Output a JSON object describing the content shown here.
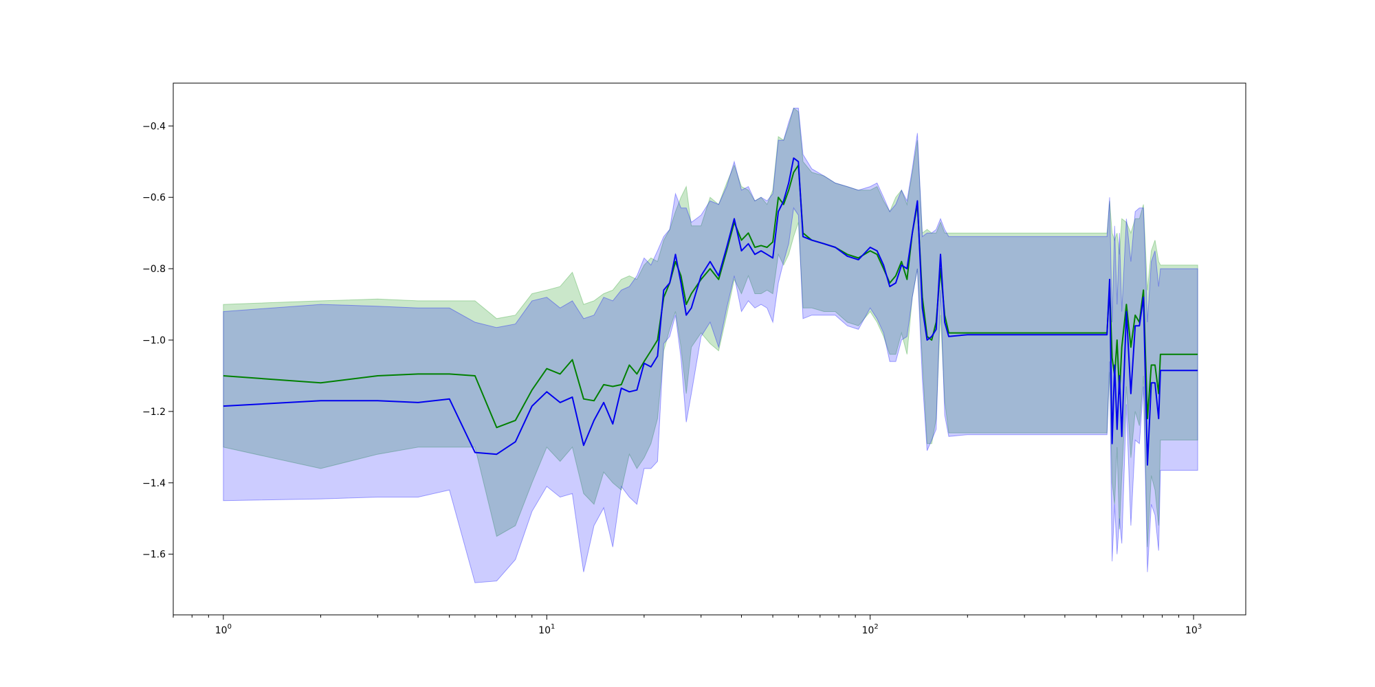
{
  "chart_data": {
    "type": "line",
    "title": "",
    "xlabel": "",
    "ylabel": "",
    "xscale": "log",
    "xlim": [
      0.7,
      1450
    ],
    "ylim": [
      -1.77,
      -0.28
    ],
    "grid": false,
    "x_ticks": [
      {
        "value": 1,
        "base": "10",
        "exp": "0"
      },
      {
        "value": 10,
        "base": "10",
        "exp": "1"
      },
      {
        "value": 100,
        "base": "10",
        "exp": "2"
      },
      {
        "value": 1000,
        "base": "10",
        "exp": "3"
      }
    ],
    "y_ticks": [
      {
        "value": -0.4,
        "label": "−0.4"
      },
      {
        "value": -0.6,
        "label": "−0.6"
      },
      {
        "value": -0.8,
        "label": "−0.8"
      },
      {
        "value": -1.0,
        "label": "−1.0"
      },
      {
        "value": -1.2,
        "label": "−1.2"
      },
      {
        "value": -1.4,
        "label": "−1.4"
      },
      {
        "value": -1.6,
        "label": "−1.6"
      }
    ],
    "series": [
      {
        "color": "#008000",
        "band_color": "#2ca02c",
        "band_opacity": 0.25,
        "points": [
          [
            1,
            -1.1,
            -0.9,
            -1.3
          ],
          [
            2,
            -1.12,
            -0.89,
            -1.36
          ],
          [
            3,
            -1.1,
            -0.885,
            -1.32
          ],
          [
            4,
            -1.095,
            -0.89,
            -1.3
          ],
          [
            5,
            -1.095,
            -0.89,
            -1.3
          ],
          [
            6,
            -1.1,
            -0.89,
            -1.3
          ],
          [
            7,
            -1.245,
            -0.94,
            -1.55
          ],
          [
            8,
            -1.225,
            -0.93,
            -1.52
          ],
          [
            9,
            -1.14,
            -0.87,
            -1.4
          ],
          [
            10,
            -1.08,
            -0.86,
            -1.3
          ],
          [
            11,
            -1.095,
            -0.85,
            -1.34
          ],
          [
            12,
            -1.055,
            -0.81,
            -1.3
          ],
          [
            13,
            -1.165,
            -0.9,
            -1.43
          ],
          [
            14,
            -1.17,
            -0.89,
            -1.46
          ],
          [
            15,
            -1.125,
            -0.87,
            -1.37
          ],
          [
            16,
            -1.13,
            -0.86,
            -1.4
          ],
          [
            17,
            -1.125,
            -0.83,
            -1.42
          ],
          [
            18,
            -1.07,
            -0.82,
            -1.32
          ],
          [
            19,
            -1.095,
            -0.83,
            -1.36
          ],
          [
            20,
            -1.06,
            -0.79,
            -1.33
          ],
          [
            21,
            -1.03,
            -0.77,
            -1.29
          ],
          [
            22,
            -1.0,
            -0.78,
            -1.22
          ],
          [
            23,
            -0.88,
            -0.72,
            -1.03
          ],
          [
            24,
            -0.84,
            -0.69,
            -0.97
          ],
          [
            25,
            -0.78,
            -0.64,
            -0.92
          ],
          [
            26,
            -0.82,
            -0.6,
            -1.02
          ],
          [
            27,
            -0.9,
            -0.57,
            -1.15
          ],
          [
            28,
            -0.87,
            -0.68,
            -1.02
          ],
          [
            30,
            -0.83,
            -0.68,
            -0.98
          ],
          [
            32,
            -0.8,
            -0.6,
            -1.01
          ],
          [
            34,
            -0.83,
            -0.62,
            -1.03
          ],
          [
            36,
            -0.75,
            -0.56,
            -0.93
          ],
          [
            38,
            -0.67,
            -0.51,
            -0.83
          ],
          [
            40,
            -0.72,
            -0.57,
            -0.87
          ],
          [
            42,
            -0.7,
            -0.58,
            -0.82
          ],
          [
            44,
            -0.74,
            -0.61,
            -0.87
          ],
          [
            46,
            -0.735,
            -0.6,
            -0.87
          ],
          [
            48,
            -0.74,
            -0.62,
            -0.86
          ],
          [
            50,
            -0.725,
            -0.58,
            -0.87
          ],
          [
            52,
            -0.6,
            -0.43,
            -0.76
          ],
          [
            54,
            -0.62,
            -0.44,
            -0.79
          ],
          [
            56,
            -0.58,
            -0.4,
            -0.76
          ],
          [
            58,
            -0.53,
            -0.35,
            -0.71
          ],
          [
            60,
            -0.51,
            -0.36,
            -0.67
          ],
          [
            62,
            -0.7,
            -0.5,
            -0.91
          ],
          [
            66,
            -0.72,
            -0.53,
            -0.91
          ],
          [
            72,
            -0.73,
            -0.54,
            -0.92
          ],
          [
            78,
            -0.74,
            -0.56,
            -0.92
          ],
          [
            85,
            -0.76,
            -0.57,
            -0.95
          ],
          [
            92,
            -0.77,
            -0.58,
            -0.96
          ],
          [
            100,
            -0.75,
            -0.58,
            -0.92
          ],
          [
            105,
            -0.76,
            -0.57,
            -0.95
          ],
          [
            110,
            -0.8,
            -0.61,
            -0.99
          ],
          [
            115,
            -0.84,
            -0.64,
            -1.04
          ],
          [
            120,
            -0.82,
            -0.6,
            -1.04
          ],
          [
            125,
            -0.78,
            -0.58,
            -0.98
          ],
          [
            130,
            -0.83,
            -0.62,
            -1.04
          ],
          [
            135,
            -0.7,
            -0.53,
            -0.88
          ],
          [
            140,
            -0.62,
            -0.44,
            -0.8
          ],
          [
            145,
            -0.88,
            -0.7,
            -1.06
          ],
          [
            150,
            -0.99,
            -0.69,
            -1.29
          ],
          [
            155,
            -1.0,
            -0.7,
            -1.29
          ],
          [
            160,
            -0.95,
            -0.7,
            -1.22
          ],
          [
            165,
            -0.8,
            -0.67,
            -0.93
          ],
          [
            170,
            -0.93,
            -0.7,
            -1.17
          ],
          [
            175,
            -0.98,
            -0.7,
            -1.26
          ],
          [
            200,
            -0.98,
            -0.7,
            -1.26
          ],
          [
            300,
            -0.98,
            -0.7,
            -1.26
          ],
          [
            400,
            -0.98,
            -0.7,
            -1.26
          ],
          [
            540,
            -0.98,
            -0.7,
            -1.26
          ],
          [
            550,
            -0.85,
            -0.61,
            -1.09
          ],
          [
            560,
            -1.05,
            -0.7,
            -1.4
          ],
          [
            570,
            -1.1,
            -0.72,
            -1.46
          ],
          [
            580,
            -1.0,
            -0.7,
            -1.3
          ],
          [
            590,
            -1.15,
            -0.76,
            -1.53
          ],
          [
            600,
            -1.02,
            -0.66,
            -1.38
          ],
          [
            620,
            -0.9,
            -0.67,
            -1.13
          ],
          [
            640,
            -1.02,
            -0.7,
            -1.33
          ],
          [
            660,
            -0.93,
            -0.66,
            -1.2
          ],
          [
            680,
            -0.95,
            -0.66,
            -1.24
          ],
          [
            700,
            -0.86,
            -0.62,
            -1.1
          ],
          [
            720,
            -1.22,
            -0.86,
            -1.58
          ],
          [
            740,
            -1.07,
            -0.75,
            -1.38
          ],
          [
            760,
            -1.07,
            -0.72,
            -1.42
          ],
          [
            780,
            -1.15,
            -0.78,
            -1.52
          ],
          [
            790,
            -1.04,
            -0.79,
            -1.28
          ],
          [
            1000,
            -1.04,
            -0.79,
            -1.28
          ],
          [
            1030,
            -1.04,
            -0.79,
            -1.28
          ]
        ]
      },
      {
        "color": "#0000ee",
        "band_color": "#0000ff",
        "band_opacity": 0.2,
        "points": [
          [
            1,
            -1.185,
            -0.92,
            -1.45
          ],
          [
            2,
            -1.17,
            -0.9,
            -1.445
          ],
          [
            3,
            -1.17,
            -0.905,
            -1.44
          ],
          [
            4,
            -1.175,
            -0.91,
            -1.44
          ],
          [
            5,
            -1.165,
            -0.91,
            -1.42
          ],
          [
            6,
            -1.315,
            -0.95,
            -1.68
          ],
          [
            7,
            -1.32,
            -0.965,
            -1.675
          ],
          [
            8,
            -1.285,
            -0.955,
            -1.615
          ],
          [
            9,
            -1.185,
            -0.89,
            -1.48
          ],
          [
            10,
            -1.145,
            -0.88,
            -1.41
          ],
          [
            11,
            -1.175,
            -0.91,
            -1.44
          ],
          [
            12,
            -1.16,
            -0.89,
            -1.43
          ],
          [
            13,
            -1.295,
            -0.94,
            -1.65
          ],
          [
            14,
            -1.225,
            -0.93,
            -1.52
          ],
          [
            15,
            -1.175,
            -0.88,
            -1.47
          ],
          [
            16,
            -1.235,
            -0.89,
            -1.58
          ],
          [
            17,
            -1.135,
            -0.86,
            -1.41
          ],
          [
            18,
            -1.145,
            -0.85,
            -1.44
          ],
          [
            19,
            -1.14,
            -0.82,
            -1.46
          ],
          [
            20,
            -1.065,
            -0.77,
            -1.36
          ],
          [
            21,
            -1.075,
            -0.79,
            -1.36
          ],
          [
            22,
            -1.045,
            -0.75,
            -1.34
          ],
          [
            23,
            -0.86,
            -0.71,
            -1.01
          ],
          [
            24,
            -0.84,
            -0.69,
            -0.99
          ],
          [
            25,
            -0.76,
            -0.59,
            -0.93
          ],
          [
            26,
            -0.84,
            -0.63,
            -1.05
          ],
          [
            27,
            -0.93,
            -0.63,
            -1.23
          ],
          [
            28,
            -0.91,
            -0.67,
            -1.15
          ],
          [
            30,
            -0.82,
            -0.65,
            -0.99
          ],
          [
            32,
            -0.78,
            -0.61,
            -0.95
          ],
          [
            34,
            -0.82,
            -0.62,
            -1.02
          ],
          [
            36,
            -0.74,
            -0.57,
            -0.91
          ],
          [
            38,
            -0.66,
            -0.5,
            -0.82
          ],
          [
            40,
            -0.75,
            -0.58,
            -0.92
          ],
          [
            42,
            -0.73,
            -0.57,
            -0.89
          ],
          [
            44,
            -0.76,
            -0.61,
            -0.91
          ],
          [
            46,
            -0.75,
            -0.6,
            -0.9
          ],
          [
            48,
            -0.76,
            -0.61,
            -0.91
          ],
          [
            50,
            -0.77,
            -0.59,
            -0.95
          ],
          [
            52,
            -0.64,
            -0.44,
            -0.84
          ],
          [
            54,
            -0.61,
            -0.44,
            -0.78
          ],
          [
            56,
            -0.56,
            -0.39,
            -0.73
          ],
          [
            58,
            -0.49,
            -0.35,
            -0.63
          ],
          [
            60,
            -0.5,
            -0.35,
            -0.65
          ],
          [
            62,
            -0.71,
            -0.48,
            -0.94
          ],
          [
            66,
            -0.72,
            -0.52,
            -0.93
          ],
          [
            72,
            -0.73,
            -0.54,
            -0.93
          ],
          [
            78,
            -0.74,
            -0.56,
            -0.93
          ],
          [
            85,
            -0.765,
            -0.57,
            -0.96
          ],
          [
            92,
            -0.775,
            -0.58,
            -0.97
          ],
          [
            100,
            -0.74,
            -0.57,
            -0.91
          ],
          [
            105,
            -0.75,
            -0.56,
            -0.94
          ],
          [
            110,
            -0.79,
            -0.6,
            -0.98
          ],
          [
            115,
            -0.85,
            -0.64,
            -1.06
          ],
          [
            120,
            -0.84,
            -0.62,
            -1.06
          ],
          [
            125,
            -0.79,
            -0.58,
            -1.0
          ],
          [
            130,
            -0.8,
            -0.61,
            -0.99
          ],
          [
            135,
            -0.7,
            -0.52,
            -0.88
          ],
          [
            140,
            -0.61,
            -0.42,
            -0.8
          ],
          [
            145,
            -0.91,
            -0.71,
            -1.11
          ],
          [
            150,
            -1.0,
            -0.7,
            -1.31
          ],
          [
            155,
            -0.99,
            -0.7,
            -1.28
          ],
          [
            160,
            -0.97,
            -0.69,
            -1.25
          ],
          [
            165,
            -0.76,
            -0.66,
            -0.86
          ],
          [
            170,
            -0.95,
            -0.69,
            -1.21
          ],
          [
            175,
            -0.99,
            -0.71,
            -1.27
          ],
          [
            200,
            -0.985,
            -0.71,
            -1.265
          ],
          [
            300,
            -0.985,
            -0.71,
            -1.265
          ],
          [
            400,
            -0.985,
            -0.71,
            -1.265
          ],
          [
            540,
            -0.985,
            -0.71,
            -1.265
          ],
          [
            550,
            -0.83,
            -0.6,
            -1.06
          ],
          [
            560,
            -1.29,
            -0.95,
            -1.62
          ],
          [
            570,
            -1.07,
            -0.68,
            -1.46
          ],
          [
            580,
            -1.25,
            -0.9,
            -1.6
          ],
          [
            590,
            -1.1,
            -0.7,
            -1.5
          ],
          [
            600,
            -1.27,
            -0.92,
            -1.57
          ],
          [
            620,
            -0.92,
            -0.66,
            -1.18
          ],
          [
            640,
            -1.15,
            -0.78,
            -1.52
          ],
          [
            660,
            -0.96,
            -0.64,
            -1.28
          ],
          [
            680,
            -0.96,
            -0.63,
            -1.29
          ],
          [
            700,
            -0.88,
            -0.63,
            -1.13
          ],
          [
            720,
            -1.35,
            -0.95,
            -1.65
          ],
          [
            740,
            -1.12,
            -0.78,
            -1.46
          ],
          [
            760,
            -1.12,
            -0.75,
            -1.49
          ],
          [
            780,
            -1.22,
            -0.85,
            -1.59
          ],
          [
            790,
            -1.085,
            -0.8,
            -1.365
          ],
          [
            1000,
            -1.085,
            -0.8,
            -1.365
          ],
          [
            1030,
            -1.085,
            -0.8,
            -1.365
          ]
        ]
      }
    ]
  }
}
